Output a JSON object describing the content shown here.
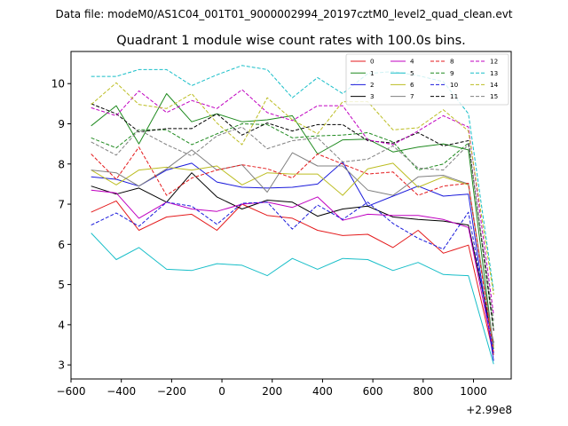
{
  "suptitle": "Data file: modeM0/AS1C04_001T01_9000002994_20197cztM0_level2_quad_clean.evt",
  "chart_data": {
    "type": "line",
    "title": "Quadrant 1 module wise count rates with 100.0s bins.",
    "xlabel": "",
    "ylabel": "",
    "x_offset_label": "+2.99e8",
    "xlim": [
      -600,
      1150
    ],
    "ylim": [
      2.65,
      10.8
    ],
    "xticks": [
      -600,
      -400,
      -200,
      0,
      200,
      400,
      600,
      800,
      1000
    ],
    "yticks": [
      3,
      4,
      5,
      6,
      7,
      8,
      9,
      10
    ],
    "grid": false,
    "legend_position": "top-right",
    "x": [
      -520,
      -420,
      -330,
      -220,
      -120,
      -20,
      80,
      180,
      280,
      380,
      480,
      580,
      680,
      780,
      880,
      980,
      1080
    ],
    "series": [
      {
        "name": "0",
        "color": "#e41a1c",
        "dash": false,
        "values": [
          6.8,
          7.08,
          6.35,
          6.68,
          6.75,
          6.35,
          7.0,
          6.72,
          6.65,
          6.35,
          6.22,
          6.25,
          5.92,
          6.35,
          5.78,
          5.98,
          3.25
        ]
      },
      {
        "name": "1",
        "color": "#1f8a1f",
        "dash": false,
        "values": [
          8.95,
          9.45,
          8.5,
          9.75,
          9.05,
          9.25,
          9.05,
          9.1,
          9.2,
          8.25,
          8.6,
          8.62,
          8.3,
          8.42,
          8.5,
          8.35,
          3.4
        ]
      },
      {
        "name": "2",
        "color": "#1a1adb",
        "dash": false,
        "values": [
          7.68,
          7.62,
          7.45,
          7.85,
          8.02,
          7.55,
          7.42,
          7.4,
          7.42,
          7.5,
          8.05,
          6.95,
          7.2,
          7.45,
          7.2,
          7.25,
          3.1
        ]
      },
      {
        "name": "3",
        "color": "#000000",
        "dash": false,
        "values": [
          7.45,
          7.25,
          7.4,
          7.05,
          7.78,
          7.18,
          6.88,
          7.1,
          7.05,
          6.7,
          6.88,
          6.95,
          6.68,
          6.62,
          6.58,
          6.48,
          3.55
        ]
      },
      {
        "name": "4",
        "color": "#c000c0",
        "dash": false,
        "values": [
          7.35,
          7.28,
          6.65,
          7.05,
          6.88,
          6.82,
          7.0,
          7.05,
          6.92,
          7.18,
          6.6,
          6.75,
          6.72,
          6.72,
          6.62,
          6.42,
          3.3
        ]
      },
      {
        "name": "5",
        "color": "#17bec8",
        "dash": false,
        "values": [
          6.28,
          5.62,
          5.92,
          5.38,
          5.35,
          5.52,
          5.48,
          5.22,
          5.65,
          5.38,
          5.65,
          5.62,
          5.35,
          5.55,
          5.25,
          5.22,
          3.02
        ]
      },
      {
        "name": "6",
        "color": "#bcbd22",
        "dash": false,
        "values": [
          7.85,
          7.48,
          7.85,
          7.92,
          7.85,
          7.95,
          7.48,
          7.78,
          7.75,
          7.75,
          7.22,
          7.88,
          8.02,
          7.42,
          7.68,
          7.48,
          3.42
        ]
      },
      {
        "name": "7",
        "color": "#808080",
        "dash": false,
        "values": [
          7.85,
          7.78,
          7.45,
          7.88,
          8.35,
          7.85,
          7.98,
          7.3,
          8.28,
          7.95,
          7.95,
          7.35,
          7.22,
          7.68,
          7.72,
          7.5,
          3.48
        ]
      },
      {
        "name": "8",
        "color": "#e41a1c",
        "dash": true,
        "values": [
          8.25,
          7.62,
          8.42,
          7.22,
          7.65,
          7.85,
          7.98,
          7.88,
          7.65,
          8.25,
          8.0,
          7.75,
          7.8,
          7.22,
          7.45,
          7.52,
          3.3
        ]
      },
      {
        "name": "9",
        "color": "#1f8a1f",
        "dash": true,
        "values": [
          8.65,
          8.4,
          8.85,
          8.85,
          8.48,
          8.75,
          9.0,
          8.98,
          8.65,
          8.7,
          8.72,
          8.78,
          8.55,
          7.85,
          8.0,
          8.52,
          3.9
        ]
      },
      {
        "name": "10",
        "color": "#1a1adb",
        "dash": true,
        "values": [
          6.48,
          6.78,
          6.45,
          7.05,
          6.95,
          6.5,
          7.02,
          7.05,
          6.38,
          6.98,
          6.62,
          7.05,
          6.52,
          6.15,
          5.88,
          6.8,
          3.3
        ]
      },
      {
        "name": "11",
        "color": "#000000",
        "dash": true,
        "values": [
          9.5,
          9.25,
          8.8,
          8.88,
          8.88,
          9.25,
          8.72,
          9.02,
          8.82,
          8.98,
          8.98,
          8.58,
          8.52,
          8.78,
          8.45,
          8.58,
          3.85
        ]
      },
      {
        "name": "12",
        "color": "#c000c0",
        "dash": true,
        "values": [
          9.4,
          9.2,
          9.82,
          9.28,
          9.58,
          9.38,
          9.85,
          9.28,
          9.08,
          9.45,
          9.45,
          8.6,
          8.48,
          8.82,
          9.2,
          8.92,
          4.25
        ]
      },
      {
        "name": "13",
        "color": "#17bec8",
        "dash": true,
        "values": [
          10.18,
          10.18,
          10.35,
          10.35,
          9.95,
          10.22,
          10.45,
          10.35,
          9.65,
          10.15,
          9.75,
          10.25,
          10.3,
          10.2,
          10.05,
          9.25,
          4.85
        ]
      },
      {
        "name": "14",
        "color": "#bcbd22",
        "dash": true,
        "values": [
          9.48,
          10.02,
          9.48,
          9.38,
          9.75,
          9.02,
          8.48,
          9.65,
          9.1,
          8.75,
          9.55,
          9.55,
          8.85,
          8.9,
          9.35,
          8.82,
          4.75
        ]
      },
      {
        "name": "15",
        "color": "#808080",
        "dash": true,
        "values": [
          8.55,
          8.22,
          8.85,
          8.48,
          8.2,
          8.7,
          8.92,
          8.38,
          8.58,
          8.65,
          8.05,
          8.12,
          8.45,
          7.9,
          7.85,
          8.48,
          4.1
        ]
      }
    ]
  }
}
